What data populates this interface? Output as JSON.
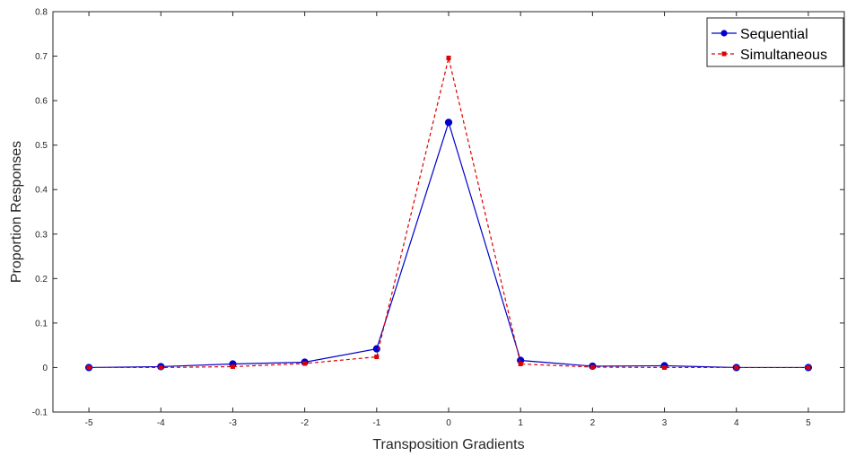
{
  "chart_data": {
    "type": "line",
    "title": "",
    "xlabel": "Transposition Gradients",
    "ylabel": "Proportion Responses",
    "xlim": [
      -5.5,
      5.5
    ],
    "ylim": [
      -0.1,
      0.8
    ],
    "xticks": [
      -5,
      -4,
      -3,
      -2,
      -1,
      0,
      1,
      2,
      3,
      4,
      5
    ],
    "xtick_labels": [
      "-5",
      "-4",
      "-3",
      "-2",
      "-1",
      "0",
      "1",
      "2",
      "3",
      "4",
      "5"
    ],
    "yticks": [
      -0.1,
      0,
      0.1,
      0.2,
      0.3,
      0.4,
      0.5,
      0.6,
      0.7,
      0.8
    ],
    "ytick_labels": [
      "-0.1",
      "0",
      "0.1",
      "0.2",
      "0.3",
      "0.4",
      "0.5",
      "0.6",
      "0.7",
      "0.8"
    ],
    "grid": false,
    "legend_position": "top-right",
    "x": [
      -5,
      -4,
      -3,
      -2,
      -1,
      0,
      1,
      2,
      3,
      4,
      5
    ],
    "series": [
      {
        "name": "Sequential",
        "values": [
          0.0,
          0.002,
          0.008,
          0.012,
          0.042,
          0.551,
          0.016,
          0.003,
          0.004,
          0.0,
          0.0
        ],
        "color": "#0000cc",
        "line_style": "solid",
        "marker": "circle"
      },
      {
        "name": "Simultaneous",
        "values": [
          0.0,
          0.0,
          0.002,
          0.009,
          0.024,
          0.696,
          0.008,
          0.001,
          0.0,
          0.0,
          0.0
        ],
        "color": "#dd0000",
        "line_style": "dashed",
        "marker": "square"
      }
    ]
  }
}
